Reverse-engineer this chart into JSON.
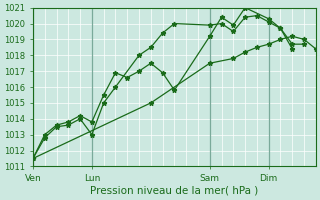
{
  "title": "Pression niveau de la mer( hPa )",
  "bg_color": "#cce8e0",
  "line_color": "#1a6b1a",
  "vline_color": "#7aaa9a",
  "grid_color": "#ffffff",
  "ylim": [
    1011,
    1021
  ],
  "yticks": [
    1011,
    1012,
    1013,
    1014,
    1015,
    1016,
    1017,
    1018,
    1019,
    1020,
    1021
  ],
  "xtick_labels": [
    "Ven",
    "Lun",
    "Sam",
    "Dim"
  ],
  "xtick_positions": [
    0,
    30,
    90,
    120
  ],
  "vline_positions": [
    0,
    30,
    90,
    120
  ],
  "xlim": [
    0,
    144
  ],
  "series": [
    {
      "x": [
        0,
        6,
        12,
        18,
        24,
        30,
        36,
        42,
        54,
        60,
        66,
        72,
        90,
        96,
        102,
        108,
        114,
        120,
        126,
        132
      ],
      "y": [
        1011.5,
        1012.8,
        1013.5,
        1013.6,
        1014.0,
        1013.0,
        1015.0,
        1016.0,
        1018.0,
        1018.5,
        1019.4,
        1020.0,
        1019.9,
        1020.0,
        1019.5,
        1020.4,
        1020.5,
        1020.1,
        1019.7,
        1018.4
      ]
    },
    {
      "x": [
        0,
        6,
        12,
        18,
        24,
        30,
        36,
        42,
        48,
        54,
        60,
        66,
        72,
        90,
        96,
        102,
        108,
        120,
        126,
        132,
        138
      ],
      "y": [
        1011.5,
        1013.0,
        1013.6,
        1013.8,
        1014.2,
        1013.8,
        1015.5,
        1016.9,
        1016.6,
        1017.0,
        1017.5,
        1016.9,
        1015.8,
        1019.2,
        1020.4,
        1019.9,
        1021.0,
        1020.3,
        1019.7,
        1018.7,
        1018.7
      ]
    },
    {
      "x": [
        0,
        60,
        90,
        102,
        108,
        114,
        120,
        126,
        132,
        138,
        144
      ],
      "y": [
        1011.5,
        1015.0,
        1017.5,
        1017.8,
        1018.2,
        1018.5,
        1018.7,
        1019.0,
        1019.2,
        1019.0,
        1018.4
      ]
    }
  ],
  "marker": "*",
  "marker_size": 3.5,
  "linewidth": 0.9,
  "xlabel_fontsize": 7.5,
  "ytick_fontsize": 6,
  "xtick_fontsize": 6.5
}
